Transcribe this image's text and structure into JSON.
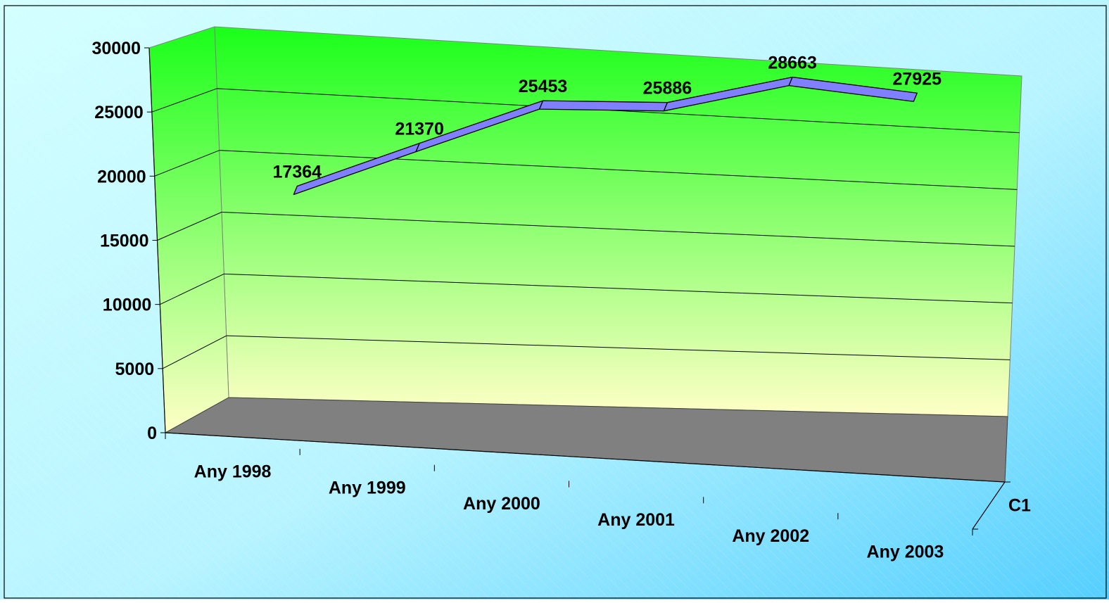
{
  "colors": {
    "background_start": "#d4ffff",
    "background_end": "#55cfff",
    "wall_top": "#1aff1a",
    "wall_bottom": "#ffffc6",
    "floor": "#808080",
    "ribbon": "#8080ff"
  },
  "chart_data": {
    "type": "line",
    "style": "3d-ribbon",
    "title": "",
    "xlabel": "",
    "ylabel": "",
    "categories": [
      "Any 1998",
      "Any 1999",
      "Any 2000",
      "Any 2001",
      "Any 2002",
      "Any 2003"
    ],
    "series": [
      {
        "name": "C1",
        "values": [
          17364,
          21370,
          25453,
          25886,
          28663,
          27925
        ]
      }
    ],
    "y_ticks": [
      "0",
      "5000",
      "10000",
      "15000",
      "20000",
      "25000",
      "30000"
    ],
    "ylim": [
      0,
      30000
    ],
    "grid": true,
    "legend": "none",
    "depth_axis_label": "C1",
    "data_labels": true
  }
}
